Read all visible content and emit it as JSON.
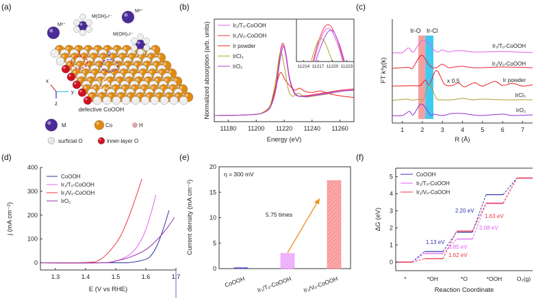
{
  "panel_labels": [
    "(a)",
    "(b)",
    "(c)",
    "(d)",
    "(e)",
    "(f)"
  ],
  "illustration": {
    "species": [
      "Mˣ⁺",
      "M(OH)ₙʸ⁻",
      "Mˣ⁺",
      "M(OH)ₙʸ⁻"
    ],
    "site_labels": [
      "1",
      "2",
      "3"
    ],
    "axes": [
      "x",
      "y",
      "z"
    ],
    "caption": "defective CoOOH",
    "legend": [
      {
        "label": "M",
        "color": "#4b2a9a"
      },
      {
        "label": "Co",
        "color": "#e08a10"
      },
      {
        "label": "H",
        "color": "#e8a0a8"
      },
      {
        "label": "surficial O",
        "color": "#e6e6e6"
      },
      {
        "label": "inner-layer O",
        "color": "#d01020"
      }
    ],
    "colors": {
      "co": "#e08a10",
      "o": "#eeeeee",
      "m": "#4b2a9a",
      "site1": "#e8202a",
      "site2": "#6a3ad0",
      "site3": "#ffffff"
    }
  },
  "chart_data": [
    {
      "id": "b",
      "type": "line",
      "xlabel": "Energy (eV)",
      "ylabel": "Normalized absorption (arb. units)",
      "xlim": [
        11170,
        11270
      ],
      "xticks": [
        11180,
        11200,
        11220,
        11240,
        11260
      ],
      "legend_placement": "top-left",
      "series": [
        {
          "name": "Ir₁/Tₒ-CoOOH",
          "color": "#e060e8",
          "points": [
            [
              11170,
              0
            ],
            [
              11190,
              0.02
            ],
            [
              11200,
              0.06
            ],
            [
              11205,
              0.14
            ],
            [
              11210,
              0.4
            ],
            [
              11214,
              1.3
            ],
            [
              11217,
              2.7
            ],
            [
              11219,
              3.2
            ],
            [
              11221,
              2.8
            ],
            [
              11224,
              1.6
            ],
            [
              11228,
              0.95
            ],
            [
              11234,
              0.88
            ],
            [
              11240,
              0.92
            ],
            [
              11250,
              1.03
            ],
            [
              11260,
              1.12
            ],
            [
              11270,
              1.18
            ]
          ]
        },
        {
          "name": "Ir₁/Vₒ-CoOOH",
          "color": "#f03040",
          "points": [
            [
              11170,
              0
            ],
            [
              11190,
              0.02
            ],
            [
              11200,
              0.06
            ],
            [
              11205,
              0.14
            ],
            [
              11210,
              0.42
            ],
            [
              11214,
              1.35
            ],
            [
              11217,
              2.8
            ],
            [
              11219,
              3.3
            ],
            [
              11221,
              2.9
            ],
            [
              11224,
              1.65
            ],
            [
              11228,
              0.97
            ],
            [
              11234,
              0.9
            ],
            [
              11240,
              0.95
            ],
            [
              11250,
              1.05
            ],
            [
              11260,
              1.15
            ],
            [
              11270,
              1.22
            ]
          ]
        },
        {
          "name": "Ir powder",
          "color": "#e82020",
          "points": [
            [
              11170,
              0
            ],
            [
              11190,
              0.02
            ],
            [
              11200,
              0.06
            ],
            [
              11205,
              0.15
            ],
            [
              11210,
              0.45
            ],
            [
              11214,
              1.3
            ],
            [
              11216.5,
              1.85
            ],
            [
              11218,
              1.95
            ],
            [
              11221,
              1.6
            ],
            [
              11225,
              1.3
            ],
            [
              11228,
              1.15
            ],
            [
              11231,
              1.25
            ],
            [
              11235,
              1.1
            ],
            [
              11240,
              1.05
            ],
            [
              11246,
              1.12
            ],
            [
              11252,
              1.0
            ],
            [
              11260,
              0.9
            ],
            [
              11270,
              0.82
            ]
          ]
        },
        {
          "name": "IrCl₃",
          "color": "#a8a030",
          "points": [
            [
              11170,
              0
            ],
            [
              11190,
              0.02
            ],
            [
              11200,
              0.06
            ],
            [
              11205,
              0.15
            ],
            [
              11210,
              0.45
            ],
            [
              11214,
              1.6
            ],
            [
              11216.5,
              2.7
            ],
            [
              11218,
              2.9
            ],
            [
              11220,
              2.3
            ],
            [
              11223,
              1.2
            ],
            [
              11226,
              0.88
            ],
            [
              11230,
              1.02
            ],
            [
              11235,
              0.85
            ],
            [
              11240,
              0.88
            ],
            [
              11250,
              0.97
            ],
            [
              11260,
              1.1
            ],
            [
              11270,
              1.15
            ]
          ]
        },
        {
          "name": "IrO₂",
          "color": "#a040e0",
          "points": [
            [
              11170,
              0
            ],
            [
              11190,
              0.02
            ],
            [
              11200,
              0.05
            ],
            [
              11205,
              0.12
            ],
            [
              11210,
              0.36
            ],
            [
              11214,
              1.15
            ],
            [
              11217,
              2.5
            ],
            [
              11219.5,
              3.15
            ],
            [
              11221.5,
              2.75
            ],
            [
              11224,
              1.7
            ],
            [
              11228,
              1.0
            ],
            [
              11234,
              0.86
            ],
            [
              11240,
              0.9
            ],
            [
              11250,
              1.0
            ],
            [
              11260,
              1.1
            ],
            [
              11270,
              1.16
            ]
          ]
        }
      ],
      "inset": {
        "xlim": [
          11212.5,
          11224.5
        ],
        "xticks": [
          11214,
          11217,
          11220,
          11223
        ]
      }
    },
    {
      "id": "c",
      "type": "line",
      "xlabel": "R (Å)",
      "ylabel": "FT k³χ(k)",
      "xlim": [
        0.5,
        7.5
      ],
      "xticks": [
        1,
        2,
        3,
        4,
        5,
        6,
        7
      ],
      "bands": [
        {
          "label": "Ir-O",
          "range": [
            1.8,
            2.15
          ],
          "color": "#f08080"
        },
        {
          "label": "Ir-Cl",
          "range": [
            2.15,
            2.55
          ],
          "color": "#20c0f0"
        }
      ],
      "annotation": "x 0.5",
      "series": [
        {
          "name": "Ir₁/Tₒ-CoOOH",
          "color": "#e060e8",
          "points": [
            [
              0.5,
              10.3
            ],
            [
              1.0,
              10.3
            ],
            [
              1.3,
              11.0
            ],
            [
              1.55,
              10.4
            ],
            [
              1.95,
              12.0
            ],
            [
              2.3,
              11.7
            ],
            [
              2.6,
              10.6
            ],
            [
              2.8,
              10.4
            ],
            [
              3.0,
              10.7
            ],
            [
              3.3,
              10.4
            ],
            [
              3.6,
              10.55
            ],
            [
              4.0,
              10.6
            ],
            [
              4.5,
              10.4
            ],
            [
              5,
              10.4
            ],
            [
              6,
              10.45
            ],
            [
              7.5,
              10.3
            ]
          ]
        },
        {
          "name": "Ir₁/Vₒ-CoOOH",
          "color": "#e82030",
          "points": [
            [
              0.5,
              8.0
            ],
            [
              1.3,
              8.15
            ],
            [
              1.5,
              8.0
            ],
            [
              1.95,
              9.9
            ],
            [
              2.3,
              8.6
            ],
            [
              2.5,
              8.1
            ],
            [
              2.7,
              8.1
            ],
            [
              3.0,
              8.6
            ],
            [
              3.3,
              8.1
            ],
            [
              3.6,
              8.2
            ],
            [
              4,
              8.3
            ],
            [
              4.5,
              8.1
            ],
            [
              5,
              8.1
            ],
            [
              6,
              8.2
            ],
            [
              7.5,
              8.1
            ]
          ]
        },
        {
          "name": "Ir powder",
          "color": "#e82020",
          "points": [
            [
              0.5,
              5.4
            ],
            [
              1.5,
              5.45
            ],
            [
              1.9,
              5.5
            ],
            [
              2.15,
              6.3
            ],
            [
              2.35,
              5.6
            ],
            [
              2.7,
              7.7
            ],
            [
              3.1,
              5.7
            ],
            [
              3.5,
              5.5
            ],
            [
              3.8,
              5.9
            ],
            [
              4.1,
              5.3
            ],
            [
              4.6,
              5.9
            ],
            [
              5,
              5.4
            ],
            [
              5.6,
              6.1
            ],
            [
              6,
              5.5
            ],
            [
              6.5,
              5.8
            ],
            [
              7,
              5.4
            ],
            [
              7.5,
              5.6
            ]
          ]
        },
        {
          "name": "IrCl₃",
          "color": "#a8a030",
          "points": [
            [
              0.5,
              3.3
            ],
            [
              1.2,
              3.5
            ],
            [
              1.5,
              3.35
            ],
            [
              1.9,
              3.5
            ],
            [
              2.05,
              3.4
            ],
            [
              2.35,
              5.6
            ],
            [
              2.7,
              3.6
            ],
            [
              3.0,
              3.4
            ],
            [
              3.5,
              3.4
            ],
            [
              4,
              3.6
            ],
            [
              4.5,
              3.4
            ],
            [
              5,
              3.5
            ],
            [
              6,
              3.4
            ],
            [
              7.5,
              3.4
            ]
          ]
        },
        {
          "name": "IrO₂",
          "color": "#8a30d0",
          "points": [
            [
              0.5,
              1.1
            ],
            [
              1.0,
              1.1
            ],
            [
              1.35,
              1.7
            ],
            [
              1.55,
              1.2
            ],
            [
              1.95,
              2.8
            ],
            [
              2.4,
              1.2
            ],
            [
              2.6,
              1.3
            ],
            [
              3.0,
              1.1
            ],
            [
              3.5,
              1.4
            ],
            [
              4,
              1.4
            ],
            [
              4.5,
              1.2
            ],
            [
              5,
              1.1
            ],
            [
              6,
              1.3
            ],
            [
              6.5,
              1.1
            ],
            [
              7.5,
              1.2
            ]
          ]
        }
      ]
    },
    {
      "id": "d",
      "type": "line",
      "xlabel": "E (V vs RHE)",
      "ylabel": "j (mA cm⁻²)",
      "xlim": [
        1.25,
        1.7
      ],
      "ylim": [
        -30,
        400
      ],
      "xticks": [
        1.3,
        1.4,
        1.5,
        1.6,
        1.7
      ],
      "yticks": [
        0,
        100,
        200,
        300,
        400
      ],
      "legend_placement": "top-left",
      "series": [
        {
          "name": "CoOOH",
          "color": "#3030a0",
          "points": [
            [
              1.25,
              0
            ],
            [
              1.5,
              0
            ],
            [
              1.55,
              2
            ],
            [
              1.6,
              15
            ],
            [
              1.62,
              35
            ],
            [
              1.64,
              80
            ],
            [
              1.66,
              150
            ],
            [
              1.677,
              220
            ]
          ]
        },
        {
          "name": "Ir₁/Tₒ-CoOOH",
          "color": "#e060f0",
          "points": [
            [
              1.25,
              0
            ],
            [
              1.45,
              0
            ],
            [
              1.5,
              7
            ],
            [
              1.55,
              38
            ],
            [
              1.58,
              85
            ],
            [
              1.6,
              140
            ],
            [
              1.62,
              220
            ],
            [
              1.633,
              285
            ]
          ]
        },
        {
          "name": "Ir₁/Vₒ-CoOOH",
          "color": "#f03040",
          "points": [
            [
              1.25,
              0
            ],
            [
              1.4,
              1
            ],
            [
              1.45,
              15
            ],
            [
              1.5,
              80
            ],
            [
              1.53,
              150
            ],
            [
              1.56,
              250
            ],
            [
              1.587,
              352
            ]
          ]
        },
        {
          "name": "IrO₂",
          "color": "#9030a0",
          "points": [
            [
              1.25,
              0
            ],
            [
              1.45,
              0
            ],
            [
              1.5,
              8
            ],
            [
              1.55,
              25
            ],
            [
              1.6,
              55
            ],
            [
              1.64,
              100
            ],
            [
              1.67,
              145
            ],
            [
              1.695,
              190
            ]
          ]
        }
      ]
    },
    {
      "id": "e",
      "type": "bar",
      "ylabel": "Current density (mA cm⁻²)",
      "ylim": [
        0,
        20
      ],
      "yticks": [
        0,
        5,
        10,
        15,
        20
      ],
      "categories": [
        "CoOOH",
        "Ir₁/Tₒ-CoOOH",
        "Ir₁/Vₒ-CoOOH"
      ],
      "values": [
        0.2,
        3.0,
        17.3
      ],
      "colors": [
        "#3030c0",
        "#e890f8",
        "#f87878"
      ],
      "annotation_condition": "η = 300 mV",
      "annotation_ratio": "5.75 times",
      "arrow_color": "#f09020"
    },
    {
      "id": "f",
      "type": "line",
      "xlabel": "Reaction Coordinate",
      "ylabel": "ΔG (eV)",
      "ylim": [
        -0.5,
        5.5
      ],
      "yticks": [
        0,
        1,
        2,
        3,
        4,
        5
      ],
      "categories": [
        "*",
        "*OH",
        "*O",
        "*OOH",
        "O₂(g)"
      ],
      "legend_placement": "top-left",
      "series": [
        {
          "name": "CoOOH",
          "color": "#3030b0",
          "values": [
            0,
            0.62,
            1.75,
            3.95,
            4.92
          ]
        },
        {
          "name": "Ir₁/Tₒ-CoOOH",
          "color": "#e060f0",
          "values": [
            0,
            0.5,
            1.35,
            3.43,
            4.92
          ]
        },
        {
          "name": "Ir₁/Vₒ-CoOOH",
          "color": "#f03040",
          "values": [
            0,
            0.2,
            1.82,
            3.45,
            4.92
          ]
        }
      ],
      "annotations": [
        {
          "text": "1.13 eV",
          "color": "#3030b0"
        },
        {
          "text": "0.85 eV",
          "color": "#e060f0"
        },
        {
          "text": "1.62 eV",
          "color": "#f03040"
        },
        {
          "text": "2.20 eV",
          "color": "#3030b0"
        },
        {
          "text": "2.08 eV",
          "color": "#e060f0"
        },
        {
          "text": "1.63 eV",
          "color": "#f03040"
        }
      ]
    }
  ]
}
